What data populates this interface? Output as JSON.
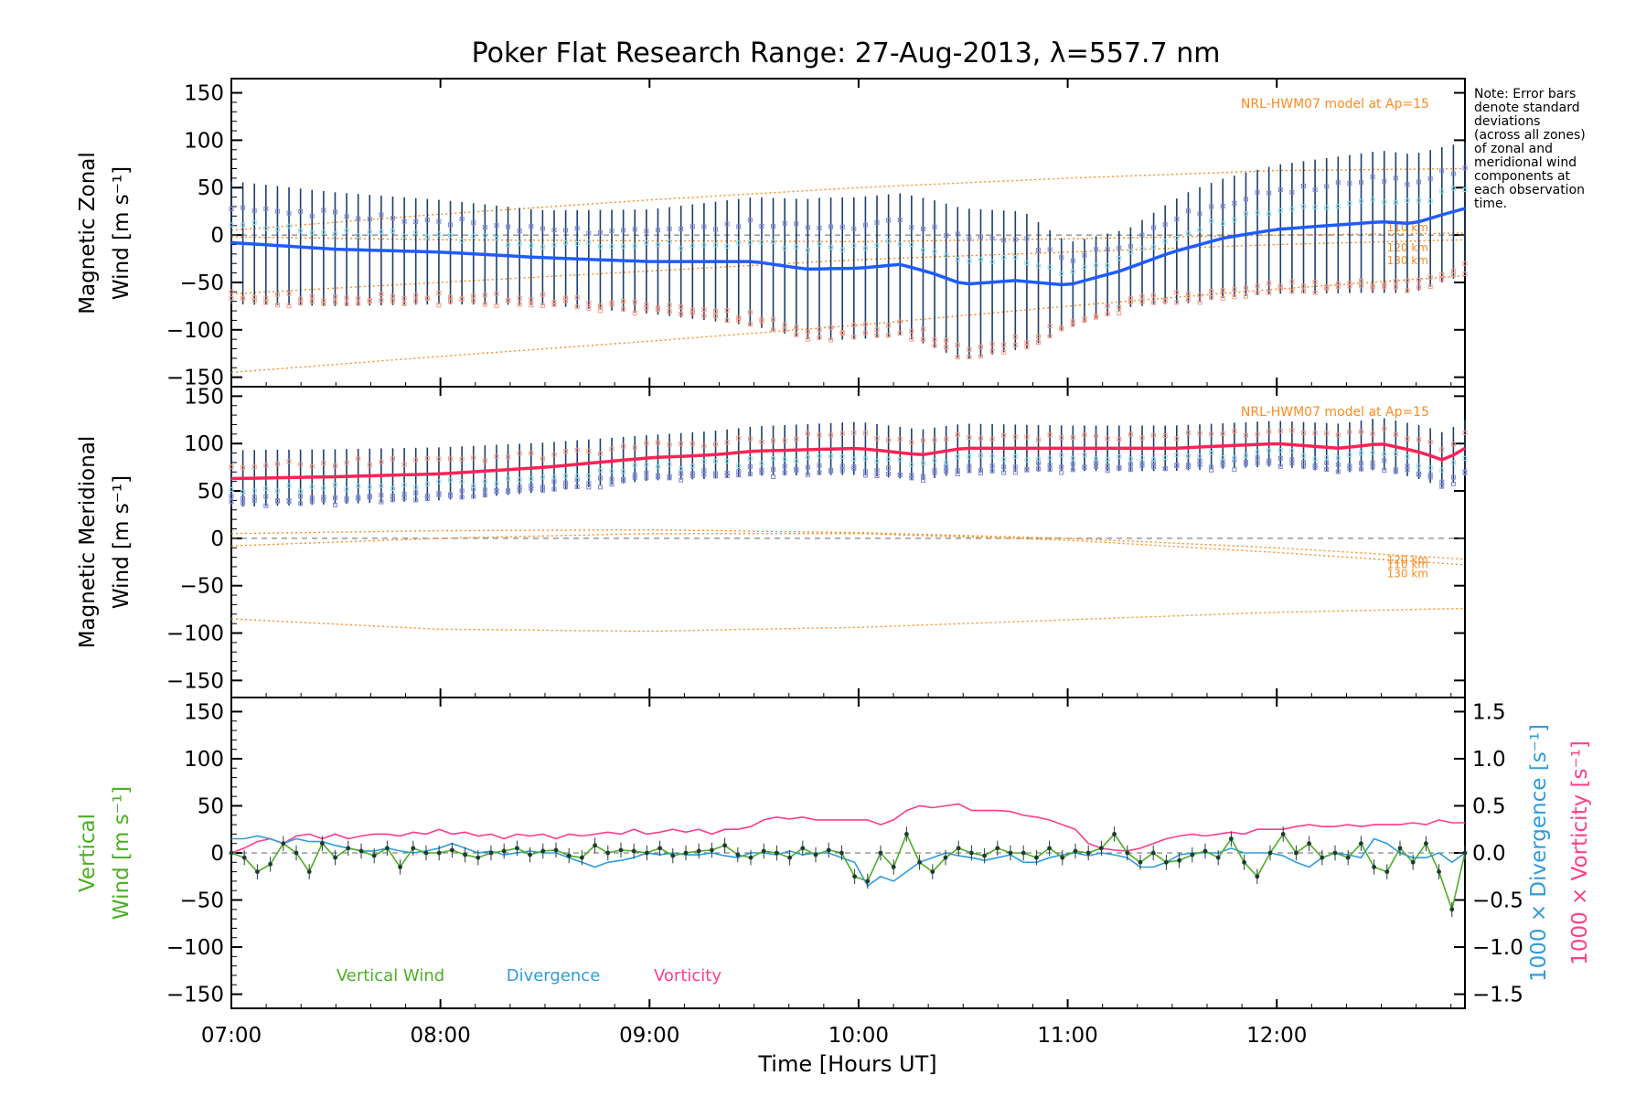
{
  "title": "Poker Flat Research Range: 27-Aug-2013, λ=557.7 nm",
  "xlabel": "Time [Hours UT]",
  "x_ticks": [
    "07:00",
    "08:00",
    "09:00",
    "10:00",
    "11:00",
    "12:00"
  ],
  "note_lines": [
    "Note: Error bars",
    "denote standard",
    "deviations",
    "(across all zones)",
    "of zonal and",
    "meridional wind",
    "components at",
    "each observation",
    "time."
  ],
  "colors": {
    "zonal_mean": "#1f5cff",
    "meridional_mean": "#ff2255",
    "error_bar": "#1d3f6e",
    "model": "#ff8a1e",
    "vertical": "#4caf24",
    "divergence": "#2f9bde",
    "vorticity": "#ff3d8a",
    "zone_blue": "#7d86d8",
    "zone_red": "#ff9a80",
    "zone_cyan": "#8fe0ea"
  },
  "chart_data": [
    {
      "type": "line",
      "panel": "zonal",
      "ylabel_line1": "Magnetic Zonal",
      "ylabel_line2": "Wind [m s⁻¹]",
      "ylim": [
        -160,
        165
      ],
      "yticks": [
        "150",
        "100",
        "50",
        "0",
        "−50",
        "−100",
        "−150"
      ],
      "ytick_values": [
        150,
        100,
        50,
        0,
        -50,
        -100,
        -150
      ],
      "model_caption": "NRL-HWM07 model at Ap=15",
      "model_labels": [
        "110 km",
        "120 km",
        "130 km"
      ],
      "x_range_hours": [
        7.0,
        12.9
      ],
      "mean_knots": [
        [
          7.0,
          -8
        ],
        [
          7.5,
          -15
        ],
        [
          8.0,
          -18
        ],
        [
          8.5,
          -24
        ],
        [
          9.0,
          -28
        ],
        [
          9.5,
          -28
        ],
        [
          9.75,
          -36
        ],
        [
          10.0,
          -35
        ],
        [
          10.2,
          -31
        ],
        [
          10.35,
          -40
        ],
        [
          10.5,
          -52
        ],
        [
          10.75,
          -48
        ],
        [
          11.0,
          -53
        ],
        [
          11.25,
          -38
        ],
        [
          11.5,
          -18
        ],
        [
          11.75,
          -3
        ],
        [
          12.0,
          6
        ],
        [
          12.5,
          14
        ],
        [
          12.65,
          12
        ],
        [
          12.8,
          22
        ],
        [
          12.9,
          28
        ]
      ],
      "error_sd_knots": [
        [
          7.0,
          65
        ],
        [
          7.5,
          60
        ],
        [
          8.0,
          55
        ],
        [
          8.5,
          50
        ],
        [
          9.0,
          55
        ],
        [
          9.5,
          68
        ],
        [
          9.8,
          75
        ],
        [
          10.2,
          75
        ],
        [
          10.5,
          80
        ],
        [
          10.8,
          72
        ],
        [
          11.0,
          45
        ],
        [
          11.3,
          42
        ],
        [
          11.6,
          60
        ],
        [
          12.0,
          68
        ],
        [
          12.5,
          75
        ],
        [
          12.9,
          70
        ]
      ],
      "model_curves": [
        {
          "name": "110 km",
          "knots": [
            [
              7.0,
              -2
            ],
            [
              8.0,
              -5
            ],
            [
              9.0,
              -6
            ],
            [
              10.0,
              -7
            ],
            [
              11.0,
              -4
            ],
            [
              12.0,
              0
            ],
            [
              12.9,
              2
            ]
          ]
        },
        {
          "name": "120 km",
          "knots": [
            [
              7.0,
              -62
            ],
            [
              8.0,
              -50
            ],
            [
              9.0,
              -38
            ],
            [
              10.0,
              -26
            ],
            [
              11.0,
              -18
            ],
            [
              12.0,
              -10
            ],
            [
              12.9,
              -5
            ]
          ]
        },
        {
          "name": "130 km",
          "knots": [
            [
              7.0,
              -145
            ],
            [
              8.0,
              -128
            ],
            [
              9.0,
              -112
            ],
            [
              10.0,
              -95
            ],
            [
              11.0,
              -75
            ],
            [
              12.0,
              -57
            ],
            [
              12.9,
              -43
            ]
          ]
        },
        {
          "name": "upper",
          "knots": [
            [
              7.0,
              5
            ],
            [
              8.0,
              22
            ],
            [
              9.0,
              37
            ],
            [
              10.0,
              50
            ],
            [
              11.0,
              60
            ],
            [
              12.0,
              68
            ],
            [
              12.9,
              70
            ]
          ]
        }
      ]
    },
    {
      "type": "line",
      "panel": "meridional",
      "ylabel_line1": "Magnetic Meridional",
      "ylabel_line2": "Wind [m s⁻¹]",
      "ylim": [
        -168,
        160
      ],
      "yticks": [
        "150",
        "100",
        "50",
        "0",
        "−50",
        "−100",
        "−150"
      ],
      "ytick_values": [
        150,
        100,
        50,
        0,
        -50,
        -100,
        -150
      ],
      "model_caption": "NRL-HWM07 model at Ap=15",
      "model_labels": [
        "110 km",
        "120 km",
        "130 km"
      ],
      "x_range_hours": [
        7.0,
        12.9
      ],
      "mean_knots": [
        [
          7.0,
          63
        ],
        [
          7.5,
          65
        ],
        [
          8.0,
          68
        ],
        [
          8.5,
          75
        ],
        [
          9.0,
          85
        ],
        [
          9.3,
          88
        ],
        [
          9.5,
          92
        ],
        [
          10.0,
          95
        ],
        [
          10.3,
          88
        ],
        [
          10.5,
          95
        ],
        [
          11.0,
          95
        ],
        [
          11.5,
          95
        ],
        [
          12.0,
          100
        ],
        [
          12.3,
          95
        ],
        [
          12.5,
          100
        ],
        [
          12.7,
          90
        ],
        [
          12.8,
          82
        ],
        [
          12.9,
          95
        ]
      ],
      "error_sd_knots": [
        [
          7.0,
          30
        ],
        [
          8.0,
          28
        ],
        [
          9.0,
          24
        ],
        [
          10.0,
          28
        ],
        [
          11.0,
          24
        ],
        [
          12.0,
          24
        ],
        [
          12.9,
          30
        ]
      ],
      "model_curves": [
        {
          "name": "110 km",
          "knots": [
            [
              7.0,
              5
            ],
            [
              8.0,
              8
            ],
            [
              9.0,
              9
            ],
            [
              10.0,
              6
            ],
            [
              11.0,
              0
            ],
            [
              12.0,
              -10
            ],
            [
              12.9,
              -22
            ]
          ]
        },
        {
          "name": "120 km",
          "knots": [
            [
              7.0,
              -8
            ],
            [
              8.0,
              0
            ],
            [
              9.0,
              5
            ],
            [
              10.0,
              5
            ],
            [
              11.0,
              -2
            ],
            [
              12.0,
              -15
            ],
            [
              12.9,
              -28
            ]
          ]
        },
        {
          "name": "130 km",
          "knots": [
            [
              7.0,
              -85
            ],
            [
              8.0,
              -96
            ],
            [
              9.0,
              -98
            ],
            [
              10.0,
              -94
            ],
            [
              11.0,
              -86
            ],
            [
              12.0,
              -78
            ],
            [
              12.9,
              -74
            ]
          ]
        }
      ]
    },
    {
      "type": "line",
      "panel": "vertical",
      "ylabel_line1": "Vertical",
      "ylabel_line2": "Wind [m s⁻¹]",
      "ylabel_right1": "1000 × Divergence [s⁻¹]",
      "ylabel_right2": "1000 × Vorticity [s⁻¹]",
      "ylim": [
        -165,
        165
      ],
      "yticks": [
        "150",
        "100",
        "50",
        "0",
        "−50",
        "−100",
        "−150"
      ],
      "ytick_values": [
        150,
        100,
        50,
        0,
        -50,
        -100,
        -150
      ],
      "y2lim": [
        -1.65,
        1.65
      ],
      "y2ticks": [
        "1.5",
        "1.0",
        "0.5",
        "0.0",
        "−0.5",
        "−1.0",
        "−1.5"
      ],
      "y2tick_values": [
        1.5,
        1.0,
        0.5,
        0.0,
        -0.5,
        -1.0,
        -1.5
      ],
      "legend": [
        "Vertical Wind",
        "Divergence",
        "Vorticity"
      ],
      "x_range_hours": [
        7.0,
        12.9
      ],
      "vertical_wind": [
        0,
        -5,
        -20,
        -12,
        10,
        0,
        -20,
        10,
        -5,
        5,
        2,
        -3,
        5,
        -15,
        5,
        0,
        0,
        3,
        -2,
        -5,
        0,
        2,
        5,
        -2,
        2,
        3,
        -3,
        -5,
        8,
        0,
        3,
        2,
        0,
        5,
        -3,
        0,
        2,
        3,
        8,
        -2,
        -5,
        2,
        0,
        -5,
        5,
        -2,
        3,
        0,
        -25,
        -30,
        0,
        -15,
        20,
        -10,
        -20,
        -5,
        5,
        0,
        -3,
        5,
        0,
        0,
        -5,
        5,
        -5,
        2,
        0,
        5,
        20,
        0,
        -10,
        0,
        -10,
        -8,
        -2,
        2,
        -5,
        15,
        -10,
        -25,
        0,
        20,
        0,
        10,
        -5,
        0,
        -5,
        10,
        -15,
        -20,
        5,
        -10,
        10,
        -20,
        -60,
        0
      ],
      "divergence": [
        0.15,
        0.15,
        0.18,
        0.15,
        0.1,
        0.15,
        0.12,
        0.12,
        0.08,
        0.05,
        0.02,
        0.02,
        0.05,
        0.02,
        0.0,
        0.02,
        0.05,
        0.1,
        0.05,
        0.0,
        0.02,
        -0.02,
        0.0,
        0.02,
        0.0,
        0.0,
        -0.05,
        -0.1,
        -0.15,
        -0.1,
        -0.08,
        -0.05,
        0.0,
        -0.02,
        0.0,
        -0.02,
        -0.02,
        0.0,
        -0.03,
        -0.05,
        0.0,
        0.0,
        -0.02,
        0.02,
        -0.02,
        0.0,
        0.0,
        -0.05,
        -0.1,
        -0.35,
        -0.25,
        -0.3,
        -0.2,
        -0.1,
        -0.05,
        0.0,
        -0.03,
        -0.05,
        -0.08,
        -0.05,
        -0.02,
        -0.1,
        -0.1,
        -0.05,
        -0.02,
        0.0,
        -0.03,
        0.0,
        -0.02,
        -0.05,
        -0.15,
        -0.15,
        -0.1,
        -0.02,
        0.0,
        0.0,
        0.0,
        0.05,
        0.0,
        0.0,
        0.0,
        -0.03,
        -0.1,
        -0.15,
        -0.05,
        0.0,
        -0.02,
        -0.05,
        0.15,
        0.1,
        0.0,
        -0.05,
        -0.05,
        0.0,
        -0.1,
        0.0
      ],
      "vorticity": [
        0.0,
        0.05,
        0.12,
        0.15,
        0.1,
        0.18,
        0.2,
        0.15,
        0.2,
        0.15,
        0.18,
        0.2,
        0.2,
        0.18,
        0.22,
        0.2,
        0.25,
        0.2,
        0.22,
        0.18,
        0.2,
        0.15,
        0.2,
        0.18,
        0.2,
        0.15,
        0.2,
        0.18,
        0.2,
        0.22,
        0.2,
        0.25,
        0.2,
        0.22,
        0.25,
        0.22,
        0.25,
        0.2,
        0.25,
        0.25,
        0.28,
        0.35,
        0.38,
        0.36,
        0.38,
        0.35,
        0.35,
        0.35,
        0.35,
        0.35,
        0.3,
        0.35,
        0.45,
        0.5,
        0.48,
        0.5,
        0.52,
        0.45,
        0.45,
        0.45,
        0.44,
        0.4,
        0.38,
        0.35,
        0.3,
        0.25,
        0.1,
        0.05,
        0.03,
        0.02,
        0.05,
        0.1,
        0.15,
        0.18,
        0.2,
        0.18,
        0.2,
        0.22,
        0.2,
        0.25,
        0.25,
        0.25,
        0.28,
        0.3,
        0.28,
        0.28,
        0.3,
        0.28,
        0.3,
        0.3,
        0.3,
        0.32,
        0.3,
        0.35,
        0.32,
        0.32
      ]
    }
  ]
}
